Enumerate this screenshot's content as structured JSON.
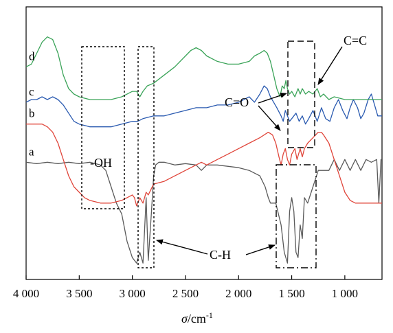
{
  "chart_data": {
    "type": "line",
    "xlabel_symbol": "σ",
    "xlabel_unit": "/cm",
    "xlabel_exp": "-1",
    "xlim": [
      4000,
      650
    ],
    "x_reversed": true,
    "y_axis_shown": false,
    "ticks": [
      {
        "value": 4000,
        "label": "4 000"
      },
      {
        "value": 3500,
        "label": "3 500"
      },
      {
        "value": 3000,
        "label": "3 000"
      },
      {
        "value": 2500,
        "label": "2 500"
      },
      {
        "value": 2000,
        "label": "2 000"
      },
      {
        "value": 1500,
        "label": "1 500"
      },
      {
        "value": 1000,
        "label": "1 000"
      }
    ],
    "series": [
      {
        "name": "a",
        "color": "#5a5a5a",
        "points": [
          [
            4000,
            0.57
          ],
          [
            3900,
            0.575
          ],
          [
            3800,
            0.57
          ],
          [
            3700,
            0.575
          ],
          [
            3600,
            0.57
          ],
          [
            3500,
            0.575
          ],
          [
            3400,
            0.57
          ],
          [
            3300,
            0.58
          ],
          [
            3250,
            0.6
          ],
          [
            3200,
            0.66
          ],
          [
            3150,
            0.72
          ],
          [
            3100,
            0.76
          ],
          [
            3050,
            0.86
          ],
          [
            3000,
            0.92
          ],
          [
            2960,
            0.94
          ],
          [
            2930,
            0.9
          ],
          [
            2900,
            0.94
          ],
          [
            2870,
            0.7
          ],
          [
            2850,
            0.93
          ],
          [
            2820,
            0.75
          ],
          [
            2800,
            0.62
          ],
          [
            2780,
            0.58
          ],
          [
            2750,
            0.57
          ],
          [
            2700,
            0.57
          ],
          [
            2600,
            0.58
          ],
          [
            2500,
            0.575
          ],
          [
            2400,
            0.58
          ],
          [
            2350,
            0.6
          ],
          [
            2300,
            0.58
          ],
          [
            2200,
            0.58
          ],
          [
            2000,
            0.59
          ],
          [
            1900,
            0.6
          ],
          [
            1800,
            0.62
          ],
          [
            1750,
            0.66
          ],
          [
            1720,
            0.7
          ],
          [
            1700,
            0.72
          ],
          [
            1650,
            0.72
          ],
          [
            1600,
            0.8
          ],
          [
            1570,
            0.9
          ],
          [
            1540,
            0.94
          ],
          [
            1520,
            0.75
          ],
          [
            1500,
            0.7
          ],
          [
            1480,
            0.75
          ],
          [
            1460,
            0.9
          ],
          [
            1440,
            0.92
          ],
          [
            1420,
            0.8
          ],
          [
            1400,
            0.85
          ],
          [
            1380,
            0.7
          ],
          [
            1350,
            0.72
          ],
          [
            1300,
            0.66
          ],
          [
            1250,
            0.6
          ],
          [
            1200,
            0.6
          ],
          [
            1150,
            0.6
          ],
          [
            1100,
            0.56
          ],
          [
            1050,
            0.6
          ],
          [
            1000,
            0.56
          ],
          [
            950,
            0.6
          ],
          [
            900,
            0.56
          ],
          [
            850,
            0.6
          ],
          [
            800,
            0.56
          ],
          [
            750,
            0.57
          ],
          [
            700,
            0.56
          ],
          [
            680,
            0.72
          ],
          [
            660,
            0.56
          ],
          [
            650,
            0.56
          ]
        ]
      },
      {
        "name": "b",
        "color": "#e0453a",
        "points": [
          [
            4000,
            0.43
          ],
          [
            3950,
            0.43
          ],
          [
            3900,
            0.43
          ],
          [
            3850,
            0.43
          ],
          [
            3800,
            0.44
          ],
          [
            3750,
            0.46
          ],
          [
            3700,
            0.5
          ],
          [
            3650,
            0.56
          ],
          [
            3600,
            0.62
          ],
          [
            3550,
            0.66
          ],
          [
            3500,
            0.68
          ],
          [
            3450,
            0.7
          ],
          [
            3400,
            0.71
          ],
          [
            3300,
            0.72
          ],
          [
            3200,
            0.72
          ],
          [
            3100,
            0.71
          ],
          [
            3050,
            0.7
          ],
          [
            3000,
            0.69
          ],
          [
            2980,
            0.7
          ],
          [
            2960,
            0.73
          ],
          [
            2930,
            0.7
          ],
          [
            2900,
            0.72
          ],
          [
            2870,
            0.68
          ],
          [
            2850,
            0.69
          ],
          [
            2800,
            0.65
          ],
          [
            2700,
            0.64
          ],
          [
            2600,
            0.62
          ],
          [
            2500,
            0.6
          ],
          [
            2450,
            0.59
          ],
          [
            2400,
            0.58
          ],
          [
            2350,
            0.57
          ],
          [
            2300,
            0.58
          ],
          [
            2200,
            0.56
          ],
          [
            2100,
            0.54
          ],
          [
            2000,
            0.52
          ],
          [
            1900,
            0.5
          ],
          [
            1800,
            0.48
          ],
          [
            1720,
            0.46
          ],
          [
            1680,
            0.47
          ],
          [
            1650,
            0.5
          ],
          [
            1620,
            0.55
          ],
          [
            1600,
            0.58
          ],
          [
            1580,
            0.54
          ],
          [
            1560,
            0.52
          ],
          [
            1540,
            0.56
          ],
          [
            1520,
            0.58
          ],
          [
            1500,
            0.54
          ],
          [
            1470,
            0.52
          ],
          [
            1450,
            0.56
          ],
          [
            1420,
            0.52
          ],
          [
            1400,
            0.55
          ],
          [
            1380,
            0.52
          ],
          [
            1350,
            0.5
          ],
          [
            1300,
            0.48
          ],
          [
            1250,
            0.46
          ],
          [
            1220,
            0.46
          ],
          [
            1200,
            0.47
          ],
          [
            1150,
            0.5
          ],
          [
            1100,
            0.56
          ],
          [
            1050,
            0.62
          ],
          [
            1000,
            0.68
          ],
          [
            950,
            0.71
          ],
          [
            900,
            0.72
          ],
          [
            850,
            0.72
          ],
          [
            800,
            0.72
          ],
          [
            750,
            0.72
          ],
          [
            700,
            0.72
          ],
          [
            650,
            0.72
          ]
        ]
      },
      {
        "name": "c",
        "color": "#2a5ab0",
        "points": [
          [
            4000,
            0.35
          ],
          [
            3950,
            0.34
          ],
          [
            3900,
            0.34
          ],
          [
            3850,
            0.33
          ],
          [
            3800,
            0.34
          ],
          [
            3750,
            0.33
          ],
          [
            3700,
            0.34
          ],
          [
            3650,
            0.36
          ],
          [
            3600,
            0.39
          ],
          [
            3550,
            0.42
          ],
          [
            3500,
            0.43
          ],
          [
            3400,
            0.44
          ],
          [
            3300,
            0.44
          ],
          [
            3200,
            0.44
          ],
          [
            3100,
            0.43
          ],
          [
            3000,
            0.42
          ],
          [
            2950,
            0.42
          ],
          [
            2900,
            0.41
          ],
          [
            2800,
            0.4
          ],
          [
            2700,
            0.4
          ],
          [
            2600,
            0.39
          ],
          [
            2500,
            0.38
          ],
          [
            2400,
            0.37
          ],
          [
            2300,
            0.37
          ],
          [
            2200,
            0.36
          ],
          [
            2100,
            0.36
          ],
          [
            2000,
            0.35
          ],
          [
            1950,
            0.34
          ],
          [
            1900,
            0.33
          ],
          [
            1850,
            0.35
          ],
          [
            1800,
            0.32
          ],
          [
            1760,
            0.29
          ],
          [
            1730,
            0.3
          ],
          [
            1700,
            0.33
          ],
          [
            1670,
            0.35
          ],
          [
            1640,
            0.37
          ],
          [
            1600,
            0.4
          ],
          [
            1580,
            0.42
          ],
          [
            1560,
            0.38
          ],
          [
            1540,
            0.4
          ],
          [
            1520,
            0.42
          ],
          [
            1500,
            0.41
          ],
          [
            1460,
            0.39
          ],
          [
            1430,
            0.42
          ],
          [
            1400,
            0.4
          ],
          [
            1370,
            0.43
          ],
          [
            1340,
            0.41
          ],
          [
            1300,
            0.38
          ],
          [
            1260,
            0.42
          ],
          [
            1220,
            0.37
          ],
          [
            1180,
            0.41
          ],
          [
            1140,
            0.42
          ],
          [
            1100,
            0.37
          ],
          [
            1060,
            0.34
          ],
          [
            1020,
            0.38
          ],
          [
            980,
            0.41
          ],
          [
            950,
            0.37
          ],
          [
            920,
            0.34
          ],
          [
            880,
            0.37
          ],
          [
            850,
            0.41
          ],
          [
            820,
            0.39
          ],
          [
            780,
            0.34
          ],
          [
            750,
            0.32
          ],
          [
            720,
            0.36
          ],
          [
            690,
            0.4
          ],
          [
            650,
            0.4
          ]
        ]
      },
      {
        "name": "d",
        "color": "#3aa358",
        "points": [
          [
            4000,
            0.22
          ],
          [
            3950,
            0.21
          ],
          [
            3900,
            0.17
          ],
          [
            3850,
            0.13
          ],
          [
            3800,
            0.11
          ],
          [
            3750,
            0.12
          ],
          [
            3700,
            0.17
          ],
          [
            3650,
            0.25
          ],
          [
            3600,
            0.3
          ],
          [
            3550,
            0.32
          ],
          [
            3500,
            0.33
          ],
          [
            3400,
            0.34
          ],
          [
            3300,
            0.34
          ],
          [
            3200,
            0.34
          ],
          [
            3100,
            0.33
          ],
          [
            3000,
            0.31
          ],
          [
            2960,
            0.31
          ],
          [
            2930,
            0.33
          ],
          [
            2900,
            0.31
          ],
          [
            2860,
            0.29
          ],
          [
            2800,
            0.28
          ],
          [
            2700,
            0.25
          ],
          [
            2600,
            0.22
          ],
          [
            2500,
            0.18
          ],
          [
            2450,
            0.16
          ],
          [
            2400,
            0.15
          ],
          [
            2350,
            0.16
          ],
          [
            2300,
            0.18
          ],
          [
            2200,
            0.2
          ],
          [
            2100,
            0.21
          ],
          [
            2000,
            0.21
          ],
          [
            1900,
            0.2
          ],
          [
            1850,
            0.18
          ],
          [
            1800,
            0.17
          ],
          [
            1760,
            0.16
          ],
          [
            1730,
            0.17
          ],
          [
            1700,
            0.2
          ],
          [
            1670,
            0.25
          ],
          [
            1640,
            0.3
          ],
          [
            1610,
            0.33
          ],
          [
            1590,
            0.29
          ],
          [
            1570,
            0.3
          ],
          [
            1555,
            0.27
          ],
          [
            1540,
            0.3
          ],
          [
            1520,
            0.32
          ],
          [
            1500,
            0.31
          ],
          [
            1470,
            0.33
          ],
          [
            1440,
            0.3
          ],
          [
            1420,
            0.32
          ],
          [
            1400,
            0.3
          ],
          [
            1370,
            0.32
          ],
          [
            1340,
            0.31
          ],
          [
            1300,
            0.32
          ],
          [
            1260,
            0.3
          ],
          [
            1230,
            0.33
          ],
          [
            1200,
            0.32
          ],
          [
            1150,
            0.34
          ],
          [
            1100,
            0.33
          ],
          [
            1000,
            0.34
          ],
          [
            900,
            0.34
          ],
          [
            800,
            0.34
          ],
          [
            700,
            0.34
          ],
          [
            650,
            0.34
          ]
        ]
      }
    ]
  },
  "annotations": {
    "oh": "-OH",
    "ch": "C-H",
    "co": "C=O",
    "cc": "C=C"
  }
}
